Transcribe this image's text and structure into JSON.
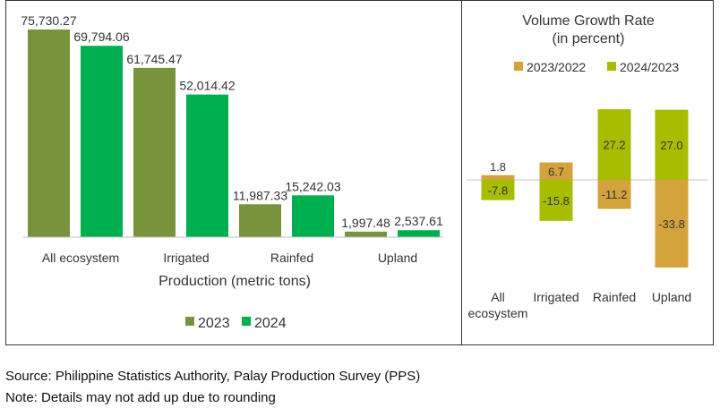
{
  "chart_data": [
    {
      "type": "bar",
      "title": "",
      "xlabel": "Production (metric tons)",
      "ylabel": "",
      "categories": [
        "All ecosystem",
        "Irrigated",
        "Rainfed",
        "Upland"
      ],
      "series": [
        {
          "name": "2023",
          "color": "#77933C",
          "values": [
            75730.27,
            61745.47,
            11987.33,
            1997.48
          ],
          "labels": [
            "75,730.27",
            "61,745.47",
            "11,987.33",
            "1,997.48"
          ]
        },
        {
          "name": "2024",
          "color": "#00B050",
          "values": [
            69794.06,
            52014.42,
            15242.03,
            2537.61
          ],
          "labels": [
            "69,794.06",
            "52,014.42",
            "15,242.03",
            "2,537.61"
          ]
        }
      ],
      "ylim": [
        0,
        75730.27
      ],
      "grid": false,
      "legend": "bottom"
    },
    {
      "type": "bar",
      "title": "Volume Growth Rate",
      "subtitle": "(in percent)",
      "xlabel": "",
      "ylabel": "",
      "categories": [
        "All ecosystem",
        "Irrigated",
        "Rainfed",
        "Upland"
      ],
      "series": [
        {
          "name": "2023/2022",
          "color": "#D4A33C",
          "values": [
            1.8,
            6.7,
            -11.2,
            -33.8
          ],
          "labels": [
            "1.8",
            "6.7",
            "-11.2",
            "-33.8"
          ]
        },
        {
          "name": "2024/2023",
          "color": "#A8BC00",
          "values": [
            -7.8,
            -15.8,
            27.2,
            27.0
          ],
          "labels": [
            "-7.8",
            "-15.8",
            "27.2",
            "27.0"
          ]
        }
      ],
      "grid": false,
      "legend": "top"
    }
  ],
  "footer": {
    "source": "Source: Philippine Statistics Authority, Palay Production Survey (PPS)",
    "note": "Note: Details may not add up due to rounding"
  }
}
